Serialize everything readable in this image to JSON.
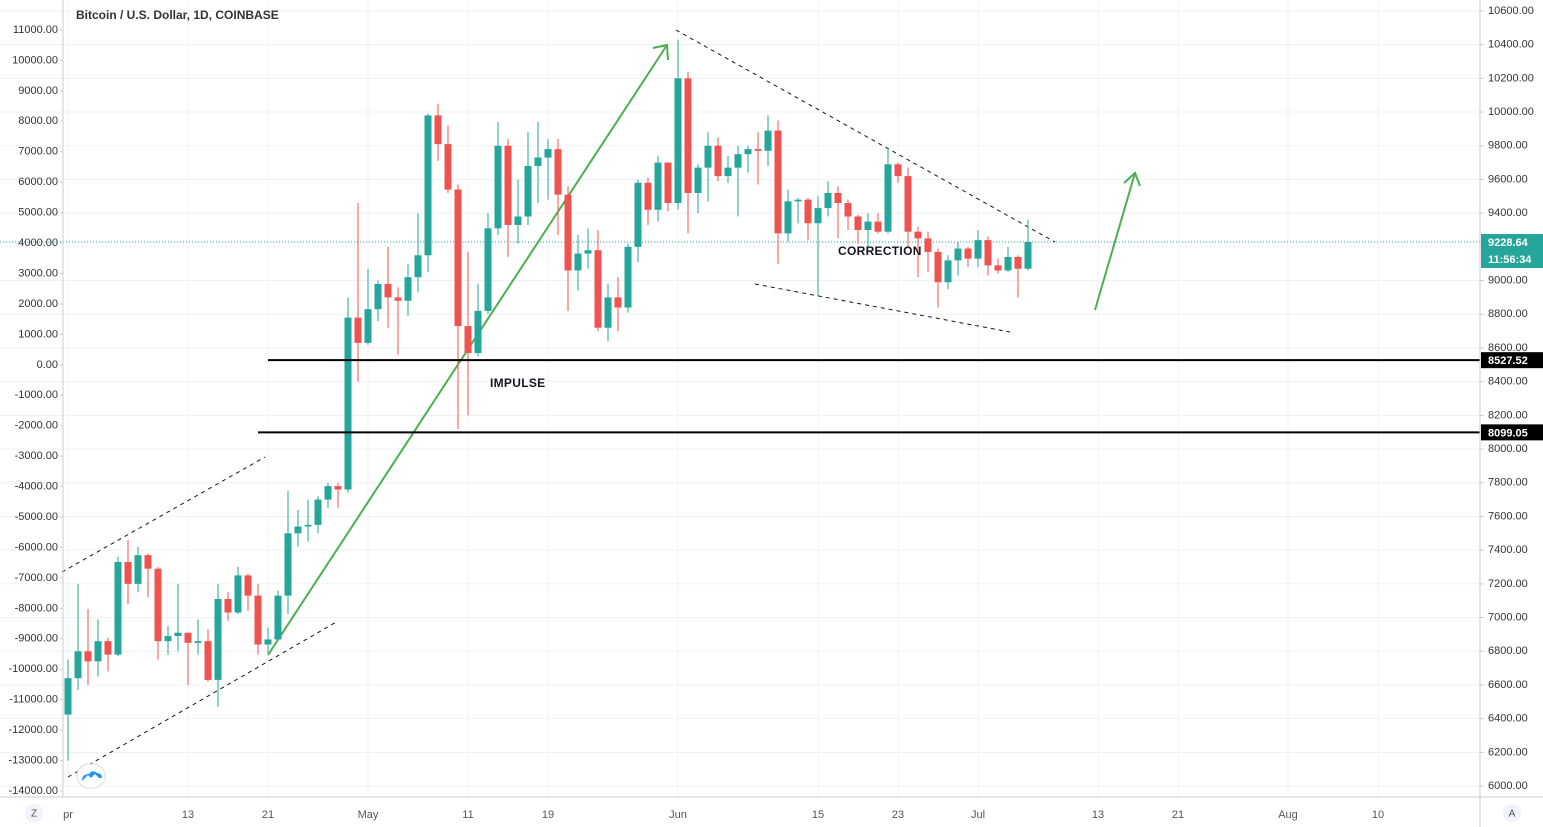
{
  "chart_data": {
    "type": "candlestick",
    "title": "Bitcoin / U.S. Dollar, 1D, COINBASE",
    "x": [
      0,
      1,
      2,
      3,
      4,
      5,
      6,
      7,
      8,
      9,
      10,
      11,
      12,
      13,
      14,
      15,
      16,
      17,
      18,
      19,
      20,
      21,
      22,
      23,
      24,
      25,
      26,
      27,
      28,
      29,
      30,
      31,
      32,
      33,
      34,
      35,
      36,
      37,
      38,
      39,
      40,
      41,
      42,
      43,
      44,
      45,
      46,
      47,
      48,
      49,
      50,
      51,
      52,
      53,
      54,
      55,
      56,
      57,
      58,
      59,
      60,
      61,
      62,
      63,
      64,
      65,
      66,
      67,
      68,
      69,
      70,
      71,
      72,
      73,
      74,
      75,
      76,
      77,
      78,
      79,
      80,
      81,
      82,
      83,
      84,
      85,
      86,
      87,
      88,
      89,
      90,
      91,
      92,
      93,
      94,
      95,
      96
    ],
    "open": [
      6424,
      6640,
      6800,
      6740,
      6860,
      6780,
      7330,
      7200,
      7370,
      7290,
      6860,
      6890,
      6910,
      6850,
      6860,
      6630,
      7110,
      7030,
      7250,
      7130,
      6840,
      6870,
      7130,
      7500,
      7540,
      7550,
      7700,
      7780,
      7760,
      8780,
      8630,
      8830,
      8980,
      8900,
      8880,
      9020,
      9150,
      9980,
      9810,
      9540,
      8730,
      8570,
      8820,
      9310,
      9800,
      9330,
      9380,
      9680,
      9730,
      9780,
      9510,
      9060,
      9160,
      9180,
      8720,
      8900,
      8840,
      9200,
      9580,
      9420,
      9700,
      9460,
      10200,
      9520,
      9670,
      9800,
      9620,
      9670,
      9750,
      9780,
      9770,
      9890,
      9280,
      9470,
      9480,
      9340,
      9430,
      9520,
      9460,
      9380,
      9300,
      9350,
      9290,
      9690,
      9620,
      9290,
      9250,
      9170,
      8990,
      9120,
      9190,
      9130,
      9240,
      9090,
      9060,
      9140,
      9070
    ],
    "high": [
      6750,
      7200,
      7050,
      6990,
      6880,
      7360,
      7460,
      7420,
      7380,
      7300,
      6950,
      7200,
      6910,
      6990,
      6930,
      7200,
      7150,
      7300,
      7260,
      7200,
      6940,
      7160,
      7750,
      7640,
      7700,
      7720,
      7800,
      7800,
      8900,
      9460,
      9070,
      9000,
      9200,
      8960,
      9100,
      9400,
      9990,
      10050,
      9920,
      9570,
      9170,
      8980,
      9400,
      9940,
      9840,
      9600,
      9880,
      9940,
      9840,
      9840,
      9560,
      9270,
      9310,
      9300,
      8980,
      9020,
      9220,
      9600,
      9610,
      9740,
      9700,
      10430,
      10240,
      9690,
      9880,
      9850,
      9740,
      9800,
      9800,
      9880,
      9980,
      9950,
      9540,
      9490,
      9490,
      9500,
      9590,
      9560,
      9480,
      9390,
      9400,
      9400,
      9790,
      9700,
      9670,
      9320,
      9290,
      9190,
      9150,
      9230,
      9200,
      9300,
      9260,
      9130,
      9200,
      9150,
      9360
    ],
    "low": [
      6150,
      6570,
      6600,
      6650,
      6680,
      6770,
      7080,
      7150,
      7120,
      6750,
      6780,
      6800,
      6600,
      6780,
      6620,
      6470,
      6980,
      7020,
      7040,
      6780,
      6790,
      6860,
      7020,
      7420,
      7450,
      7500,
      7650,
      7650,
      7740,
      8400,
      8620,
      8760,
      8720,
      8560,
      8790,
      8930,
      9050,
      9710,
      9520,
      8120,
      8200,
      8550,
      8800,
      9270,
      9140,
      9220,
      9330,
      9460,
      9480,
      9270,
      8820,
      8940,
      9070,
      8700,
      8640,
      8700,
      8810,
      9110,
      9330,
      9350,
      9410,
      9420,
      9280,
      9400,
      9470,
      9590,
      9580,
      9380,
      9640,
      9570,
      9680,
      9100,
      9230,
      9340,
      9240,
      8910,
      9380,
      9250,
      9300,
      9220,
      9200,
      9280,
      9280,
      9580,
      9190,
      9020,
      9050,
      8840,
      8950,
      9030,
      9080,
      9080,
      9030,
      9040,
      9050,
      8900,
      9060
    ],
    "close": [
      6640,
      6800,
      6740,
      6860,
      6780,
      7330,
      7200,
      7370,
      7290,
      6860,
      6890,
      6910,
      6850,
      6860,
      6630,
      7110,
      7030,
      7250,
      7130,
      6840,
      6870,
      7130,
      7500,
      7540,
      7550,
      7700,
      7780,
      7760,
      8780,
      8630,
      8830,
      8980,
      8900,
      8880,
      9020,
      9150,
      9980,
      9810,
      9540,
      8730,
      8570,
      8820,
      9310,
      9800,
      9330,
      9380,
      9680,
      9730,
      9780,
      9510,
      9060,
      9160,
      9180,
      8720,
      8900,
      8840,
      9200,
      9580,
      9420,
      9700,
      9460,
      10200,
      9520,
      9670,
      9800,
      9620,
      9670,
      9750,
      9780,
      9770,
      9890,
      9280,
      9470,
      9480,
      9340,
      9430,
      9520,
      9460,
      9380,
      9300,
      9350,
      9290,
      9690,
      9620,
      9290,
      9250,
      9170,
      8990,
      9120,
      9190,
      9130,
      9240,
      9090,
      9060,
      9140,
      9070,
      9228.64
    ],
    "up_color": "#26a69a",
    "down_color": "#ef5350",
    "xlim": [
      -0.5,
      141.2
    ],
    "xticks": [
      {
        "value": 0,
        "label": "pr"
      },
      {
        "value": 12,
        "label": "13"
      },
      {
        "value": 20,
        "label": "21"
      },
      {
        "value": 30,
        "label": "May"
      },
      {
        "value": 40,
        "label": "11"
      },
      {
        "value": 48,
        "label": "19"
      },
      {
        "value": 61,
        "label": "Jun"
      },
      {
        "value": 75,
        "label": "15"
      },
      {
        "value": 83,
        "label": "23"
      },
      {
        "value": 91,
        "label": "Jul"
      },
      {
        "value": 103,
        "label": "13"
      },
      {
        "value": 111,
        "label": "21"
      },
      {
        "value": 122,
        "label": "Aug"
      },
      {
        "value": 131,
        "label": "10"
      }
    ],
    "ylim": [
      -14197,
      11986
    ],
    "yticks": [
      {
        "value": -14000,
        "label": "-14000.00"
      },
      {
        "value": -13000,
        "label": "-13000.00"
      },
      {
        "value": -12000,
        "label": "-12000.00"
      },
      {
        "value": -11000,
        "label": "-11000.00"
      },
      {
        "value": -10000,
        "label": "-10000.00"
      },
      {
        "value": -9000,
        "label": "-9000.00"
      },
      {
        "value": -8000,
        "label": "-8000.00"
      },
      {
        "value": -7000,
        "label": "-7000.00"
      },
      {
        "value": -6000,
        "label": "-6000.00"
      },
      {
        "value": -5000,
        "label": "-5000.00"
      },
      {
        "value": -4000,
        "label": "-4000.00"
      },
      {
        "value": -3000,
        "label": "-3000.00"
      },
      {
        "value": -2000,
        "label": "-2000.00"
      },
      {
        "value": -1000,
        "label": "-1000.00"
      },
      {
        "value": 0,
        "label": "0.00"
      },
      {
        "value": 1000,
        "label": "1000.00"
      },
      {
        "value": 2000,
        "label": "2000.00"
      },
      {
        "value": 3000,
        "label": "3000.00"
      },
      {
        "value": 4000,
        "label": "4000.00"
      },
      {
        "value": 5000,
        "label": "5000.00"
      },
      {
        "value": 6000,
        "label": "6000.00"
      },
      {
        "value": 7000,
        "label": "7000.00"
      },
      {
        "value": 8000,
        "label": "8000.00"
      },
      {
        "value": 9000,
        "label": "9000.00"
      },
      {
        "value": 10000,
        "label": "10000.00"
      },
      {
        "value": 11000,
        "label": "11000.00"
      }
    ],
    "y2lim": [
      5935,
      10665
    ],
    "y2ticks": [
      {
        "value": 6000,
        "label": "6000.00"
      },
      {
        "value": 6200,
        "label": "6200.00"
      },
      {
        "value": 6400,
        "label": "6400.00"
      },
      {
        "value": 6600,
        "label": "6600.00"
      },
      {
        "value": 6800,
        "label": "6800.00"
      },
      {
        "value": 7000,
        "label": "7000.00"
      },
      {
        "value": 7200,
        "label": "7200.00"
      },
      {
        "value": 7400,
        "label": "7400.00"
      },
      {
        "value": 7600,
        "label": "7600.00"
      },
      {
        "value": 7800,
        "label": "7800.00"
      },
      {
        "value": 8000,
        "label": "8000.00"
      },
      {
        "value": 8200,
        "label": "8200.00"
      },
      {
        "value": 8400,
        "label": "8400.00"
      },
      {
        "value": 8600,
        "label": "8600.00"
      },
      {
        "value": 8800,
        "label": "8800.00"
      },
      {
        "value": 9000,
        "label": "9000.00"
      },
      {
        "value": 9200,
        "label": "9200.00"
      },
      {
        "value": 9400,
        "label": "9400.00"
      },
      {
        "value": 9600,
        "label": "9600.00"
      },
      {
        "value": 9800,
        "label": "9800.00"
      },
      {
        "value": 10000,
        "label": "10000.00"
      },
      {
        "value": 10200,
        "label": "10200.00"
      },
      {
        "value": 10400,
        "label": "10400.00"
      },
      {
        "value": 10600,
        "label": "10600.00"
      }
    ],
    "grid": true,
    "last_price": 9228.64,
    "countdown": "11:56:34",
    "hlines": [
      8527.52,
      8099.05
    ],
    "annotations": [
      "IMPULSE",
      "CORRECTION"
    ]
  },
  "toolbar": {
    "left_button": "Z",
    "right_button": "A"
  }
}
